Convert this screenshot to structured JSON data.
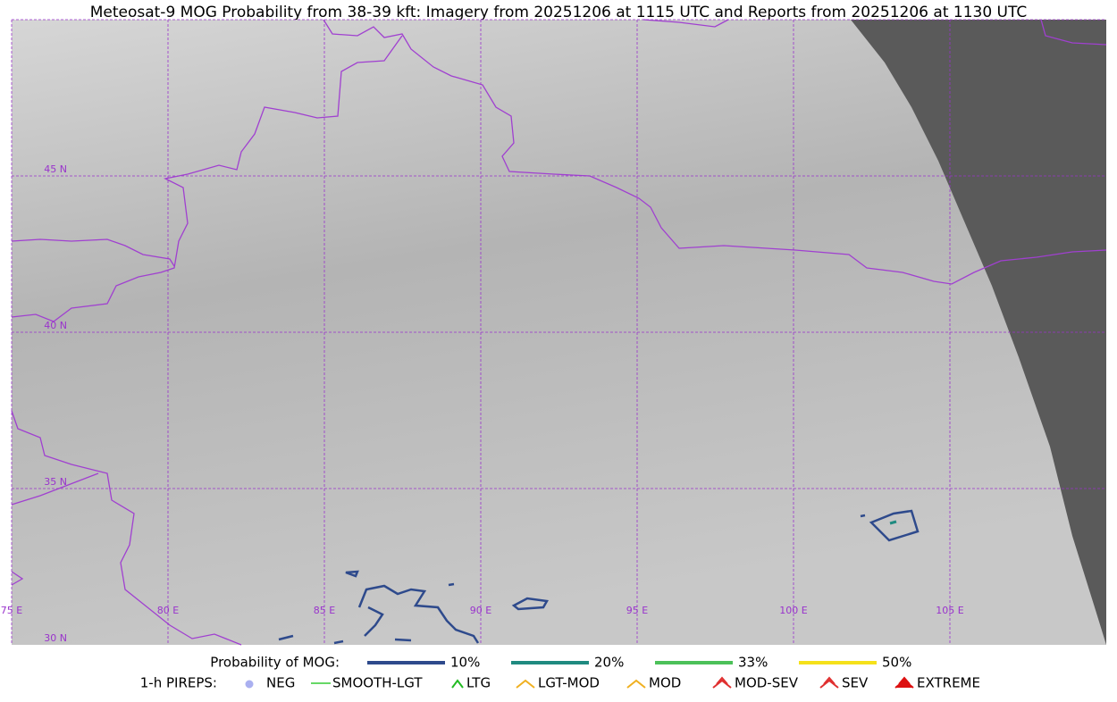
{
  "header": {
    "title": "Meteosat-9 MOG Probability from 38-39 kft: Imagery from 20251206 at 1115 UTC and Reports from 20251206 at 1130 UTC"
  },
  "map": {
    "lat_labels": [
      "45 N",
      "40 N",
      "35 N",
      "30 N"
    ],
    "lon_labels": [
      "75 E",
      "80 E",
      "85 E",
      "90 E",
      "95 E",
      "100 E",
      "105 E"
    ]
  },
  "legend": {
    "probability": {
      "title": "Probability of MOG:",
      "items": [
        {
          "label": "10%",
          "color": "#2e4a8c"
        },
        {
          "label": "20%",
          "color": "#1f8a80"
        },
        {
          "label": "33%",
          "color": "#4cc159"
        },
        {
          "label": "50%",
          "color": "#f5e11a"
        }
      ]
    },
    "pireps": {
      "title": "1-h PIREPS:",
      "items": [
        {
          "label": "NEG",
          "color": "#aab0f0"
        },
        {
          "label": "SMOOTH-LGT",
          "color": "#33cc33"
        },
        {
          "label": "LTG",
          "color": "#22bb22"
        },
        {
          "label": "LGT-MOD",
          "color": "#f0b020"
        },
        {
          "label": "MOD",
          "color": "#f0b020"
        },
        {
          "label": "MOD-SEV",
          "color": "#e03030"
        },
        {
          "label": "SEV",
          "color": "#e03030"
        },
        {
          "label": "EXTREME",
          "color": "#dd1111"
        }
      ]
    }
  }
}
